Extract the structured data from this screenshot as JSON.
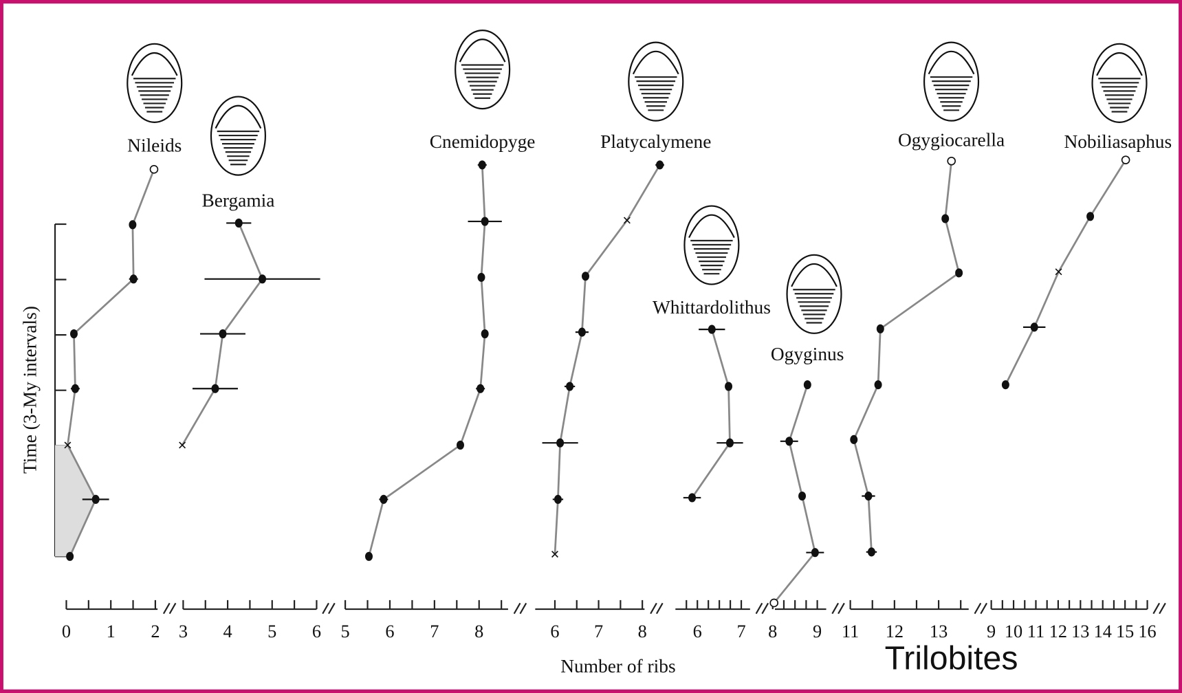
{
  "figure": {
    "ylabel": "Time (3-My intervals)",
    "xlabel": "Number of ribs",
    "caption": "Trilobites",
    "ylim": [
      0,
      7.5
    ],
    "yticks": [
      0,
      1,
      2,
      3,
      4,
      5,
      6
    ]
  },
  "chart_data": [
    {
      "type": "line",
      "title": "Nileids",
      "xlim": [
        0,
        2.05
      ],
      "xticks": [
        0,
        1,
        2
      ],
      "xminorticks": [
        0.5,
        1.5
      ],
      "x": [
        0.08,
        0.66,
        0.03,
        0.2,
        0.17,
        1.51,
        1.49,
        1.97
      ],
      "values": [
        0,
        1.03,
        2.01,
        3.03,
        4.02,
        5.01,
        5.99,
        6.99
      ],
      "xerr": [
        null,
        0.3,
        null,
        0.1,
        0.05,
        0.1,
        null,
        null
      ],
      "markers": [
        "filled",
        "filled",
        "cross",
        "filled",
        "filled",
        "filled",
        "filled",
        "open"
      ],
      "shaded": true
    },
    {
      "type": "line",
      "title": "Bergamia",
      "xlim": [
        3,
        6
      ],
      "xticks": [
        3,
        4,
        5,
        6
      ],
      "xminorticks": [
        3.5,
        4.5,
        5.5
      ],
      "x": [
        2.98,
        3.72,
        3.89,
        4.78,
        4.25
      ],
      "values": [
        2.01,
        3.03,
        4.02,
        5.01,
        6.02
      ],
      "xerr": [
        null,
        0.51,
        0.51,
        1.3,
        0.28
      ],
      "markers": [
        "cross",
        "filled",
        "filled",
        "filled",
        "filled"
      ]
    },
    {
      "type": "line",
      "title": "Cnemidopyge",
      "xlim": [
        5,
        8.65
      ],
      "xticks": [
        5,
        6,
        7,
        8
      ],
      "xminorticks": [
        5.5,
        6.5,
        7.5,
        8.5
      ],
      "x": [
        5.53,
        5.86,
        7.58,
        8.03,
        8.13,
        8.05,
        8.13,
        8.07
      ],
      "values": [
        0,
        1.03,
        2.01,
        3.03,
        4.02,
        5.04,
        6.05,
        7.07
      ],
      "xerr": [
        0.08,
        0.1,
        0.05,
        0.1,
        0.05,
        0.08,
        0.38,
        0.1
      ],
      "markers": [
        "filled",
        "filled",
        "filled",
        "filled",
        "filled",
        "filled",
        "filled",
        "filled"
      ]
    },
    {
      "type": "line",
      "title": "Platycalymene",
      "xlim": [
        5.55,
        8.05
      ],
      "xticks": [
        6,
        7,
        8
      ],
      "xminorticks": [
        6.5,
        7.5
      ],
      "x": [
        6,
        6.07,
        6.12,
        6.34,
        6.62,
        6.7,
        7.65,
        8.4
      ],
      "values": [
        0.04,
        1.03,
        2.05,
        3.07,
        4.05,
        5.06,
        6.07,
        7.07
      ],
      "xerr": [
        null,
        0.12,
        0.41,
        0.12,
        0.15,
        null,
        null,
        0.1
      ],
      "markers": [
        "cross",
        "filled",
        "filled",
        "filled",
        "filled",
        "filled",
        "cross",
        "filled"
      ]
    },
    {
      "type": "line",
      "title": "Whittardolithus",
      "xlim": [
        5.5,
        7.2
      ],
      "xticks": [
        6,
        7
      ],
      "xminorticks": [
        5.75,
        6.25,
        6.5,
        6.75
      ],
      "x": [
        5.88,
        6.74,
        6.71,
        6.33
      ],
      "values": [
        1.06,
        2.05,
        3.07,
        4.1
      ],
      "xerr": [
        0.2,
        0.3,
        null,
        0.3
      ],
      "markers": [
        "filled",
        "filled",
        "filled",
        "filled"
      ]
    },
    {
      "type": "line",
      "title": "Ogyginus",
      "xlim": [
        8.05,
        9.2
      ],
      "xticks": [
        8,
        9
      ],
      "xminorticks": [
        8.25,
        8.5,
        8.75
      ],
      "x": [
        8.03,
        8.95,
        8.66,
        8.37,
        8.78
      ],
      "values": [
        -0.84,
        0.07,
        1.09,
        2.08,
        3.1
      ],
      "xerr": [
        null,
        0.2,
        null,
        0.2,
        null
      ],
      "markers": [
        "open",
        "filled",
        "filled",
        "filled",
        "filled"
      ]
    },
    {
      "type": "line",
      "title": "Ogygiocarella",
      "xlim": [
        11,
        13.68
      ],
      "xticks": [
        11,
        12,
        13
      ],
      "xminorticks": [
        11.5,
        12.5,
        13.5
      ],
      "x": [
        11.48,
        11.41,
        11.08,
        11.63,
        11.68,
        13.46,
        13.15,
        13.29
      ],
      "values": [
        0.08,
        1.09,
        2.11,
        3.1,
        4.11,
        5.12,
        6.1,
        7.14
      ],
      "xerr": [
        0.12,
        0.15,
        0.05,
        0.08,
        0.08,
        0.08,
        null,
        null
      ],
      "markers": [
        "filled",
        "filled",
        "filled",
        "filled",
        "filled",
        "filled",
        "filled",
        "open"
      ]
    },
    {
      "type": "line",
      "title": "Nobiliasaphus",
      "xlim": [
        9,
        16
      ],
      "xticks": [
        9,
        10,
        11,
        12,
        13,
        14,
        15,
        16
      ],
      "xminorticks": [
        9.5,
        10.5,
        11.5,
        12.5,
        13.5,
        14.5,
        15.5
      ],
      "x": [
        9.64,
        10.93,
        12.02,
        13.44,
        15.03
      ],
      "values": [
        3.1,
        4.14,
        5.14,
        6.14,
        7.16
      ],
      "xerr": [
        null,
        0.5,
        null,
        null,
        null
      ],
      "markers": [
        "filled",
        "filled",
        "cross",
        "filled",
        "open"
      ]
    }
  ]
}
